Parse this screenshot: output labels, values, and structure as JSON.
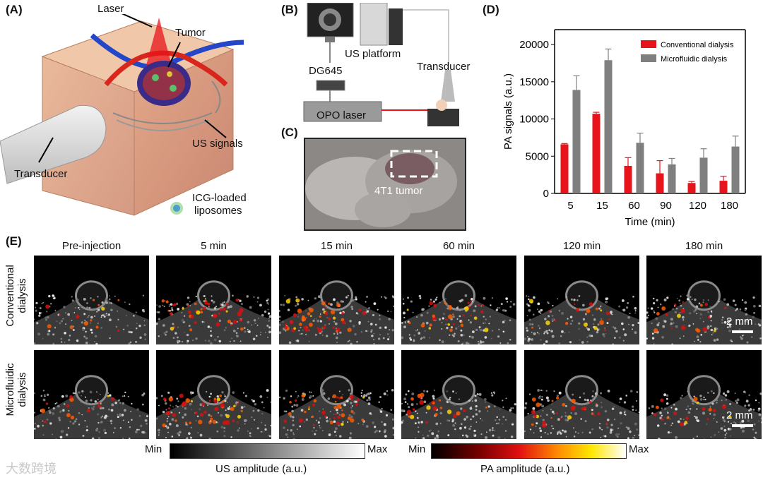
{
  "panels": {
    "a": {
      "label": "(A)",
      "laser": "Laser",
      "tumor": "Tumor",
      "us_signals": "US signals",
      "transducer": "Transducer",
      "liposomes_line1": "ICG-loaded",
      "liposomes_line2": "liposomes"
    },
    "b": {
      "label": "(B)",
      "us_platform": "US platform",
      "dg645": "DG645",
      "transducer": "Transducer",
      "opo_laser": "OPO laser"
    },
    "c": {
      "label": "(C)",
      "tumor_label": "4T1 tumor"
    },
    "d": {
      "label": "(D)"
    },
    "e": {
      "label": "(E)",
      "columns": [
        "Pre-injection",
        "5 min",
        "15 min",
        "60 min",
        "120 min",
        "180 min"
      ],
      "rows": [
        {
          "line1": "Conventional",
          "line2": "dialysis"
        },
        {
          "line1": "Microfluidic",
          "line2": "dialysis"
        }
      ],
      "scale_bar": "2 mm",
      "us_bar": {
        "min": "Min",
        "max": "Max",
        "title": "US amplitude (a.u.)"
      },
      "pa_bar": {
        "min": "Min",
        "max": "Max",
        "title": "PA amplitude (a.u.)"
      }
    }
  },
  "watermark": "大数跨境",
  "colors": {
    "conventional": "#e8141b",
    "microfluidic": "#7f7f7f"
  },
  "chart_data": {
    "type": "bar",
    "categories": [
      "5",
      "15",
      "60",
      "90",
      "120",
      "180"
    ],
    "series": [
      {
        "name": "Conventional dialysis",
        "values": [
          6600,
          10700,
          3700,
          2700,
          1400,
          1700
        ],
        "errors": [
          100,
          200,
          1100,
          1700,
          200,
          600
        ]
      },
      {
        "name": "Microfluidic dialysis",
        "values": [
          13900,
          17900,
          6800,
          3900,
          4800,
          6300
        ],
        "errors": [
          1900,
          1500,
          1300,
          800,
          1200,
          1400
        ]
      }
    ],
    "xlabel": "Time (min)",
    "ylabel": "PA signals (a.u.)",
    "ylim": [
      0,
      22000
    ],
    "yticks": [
      0,
      5000,
      10000,
      15000,
      20000
    ],
    "legend": "top-right"
  }
}
